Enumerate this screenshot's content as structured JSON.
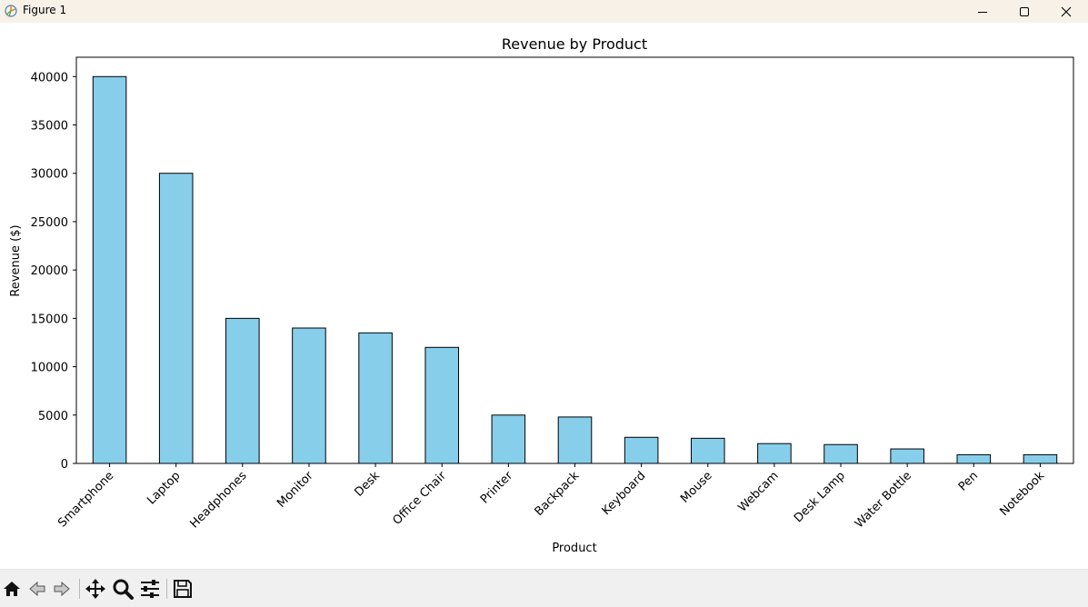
{
  "window": {
    "title": "Figure 1",
    "controls": [
      "minimize",
      "maximize",
      "close"
    ]
  },
  "toolbar": {
    "tools": [
      "home-icon",
      "back-icon",
      "forward-icon",
      "pan-icon",
      "zoom-icon",
      "configure-subplots-icon",
      "save-icon"
    ]
  },
  "colors": {
    "bar_fill": "#87ceeb",
    "bar_edge": "#000000",
    "titlebar": "#f7f1e8",
    "toolbar": "#f0f0f0"
  },
  "chart_data": {
    "type": "bar",
    "title": "Revenue by Product",
    "xlabel": "Product",
    "ylabel": "Revenue ($)",
    "categories": [
      "Smartphone",
      "Laptop",
      "Headphones",
      "Monitor",
      "Desk",
      "Office Chair",
      "Printer",
      "Backpack",
      "Keyboard",
      "Mouse",
      "Webcam",
      "Desk Lamp",
      "Water Bottle",
      "Pen",
      "Notebook"
    ],
    "values": [
      40000,
      30000,
      15000,
      14000,
      13500,
      12000,
      5000,
      4800,
      2700,
      2600,
      2050,
      1950,
      1500,
      900,
      900
    ],
    "ylim": [
      0,
      42000
    ],
    "yticks": [
      0,
      5000,
      10000,
      15000,
      20000,
      25000,
      30000,
      35000,
      40000
    ],
    "xtick_rotation": 45,
    "grid": false,
    "legend": "none"
  }
}
